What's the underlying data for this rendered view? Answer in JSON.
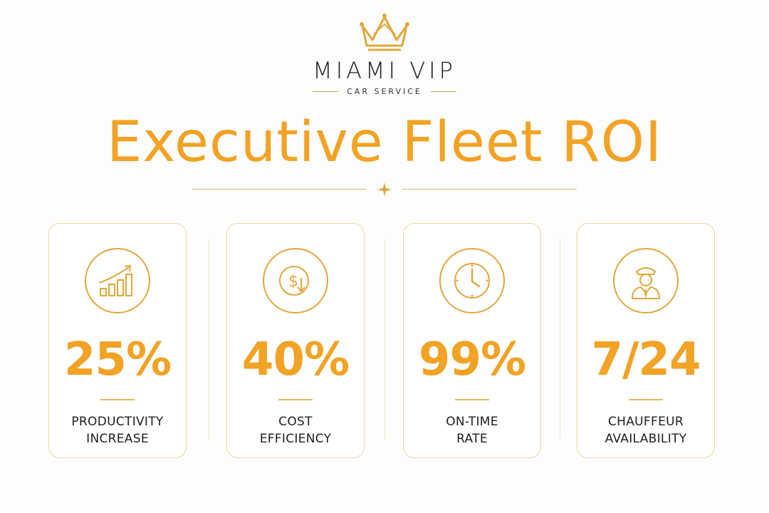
{
  "brand": {
    "name": "MIAMI VIP",
    "sub": "CAR SERVICE",
    "accent": "#f2a224"
  },
  "title": "Executive Fleet ROI",
  "metrics": [
    {
      "value": "25%",
      "label_line1": "PRODUCTIVITY",
      "label_line2": "INCREASE",
      "icon": "growth-chart-icon"
    },
    {
      "value": "40%",
      "label_line1": "COST",
      "label_line2": "EFFICIENCY",
      "icon": "dollar-down-icon"
    },
    {
      "value": "99%",
      "label_line1": "ON-TIME",
      "label_line2": "RATE",
      "icon": "clock-icon"
    },
    {
      "value": "7/24",
      "label_line1": "CHAUFFEUR",
      "label_line2": "AVAILABILITY",
      "icon": "chauffeur-icon"
    }
  ]
}
